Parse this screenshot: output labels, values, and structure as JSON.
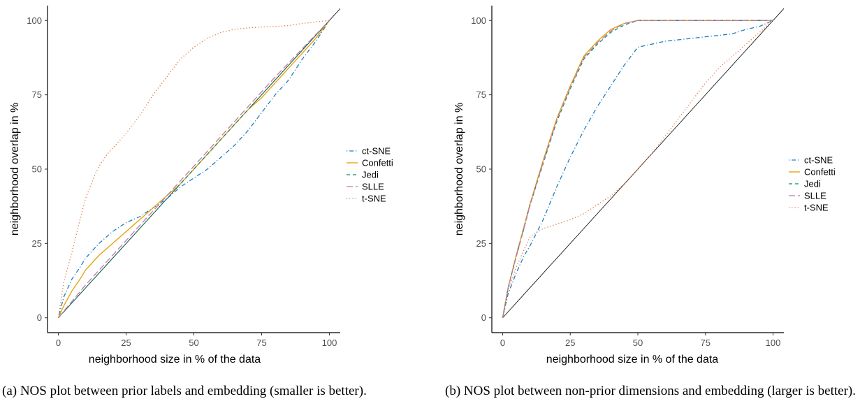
{
  "chart_data": [
    {
      "type": "line",
      "xlabel": "neighborhood size in % of the data",
      "ylabel": "neighborhood overlap in %",
      "xlim": [
        -4,
        104
      ],
      "ylim": [
        -5,
        105
      ],
      "x_ticks": [
        0,
        25,
        50,
        75,
        100
      ],
      "y_ticks": [
        0,
        25,
        50,
        75,
        100
      ],
      "grid": false,
      "legend_position": "right",
      "reference_line": {
        "x": [
          0,
          104
        ],
        "y": [
          0,
          104
        ]
      },
      "series": [
        {
          "name": "ct-SNE",
          "color": "#1f7fc0",
          "dash": "dot-dash",
          "x": [
            0,
            2,
            5,
            8,
            10,
            15,
            20,
            25,
            30,
            35,
            40,
            45,
            50,
            55,
            60,
            65,
            70,
            75,
            80,
            85,
            90,
            95,
            100
          ],
          "y": [
            0,
            7,
            13,
            17,
            20,
            25,
            29,
            32,
            34,
            37,
            40,
            44,
            47,
            50,
            54,
            58,
            63,
            69,
            75,
            80,
            87,
            93,
            100
          ]
        },
        {
          "name": "Confetti",
          "color": "#e69f00",
          "dash": "solid",
          "x": [
            0,
            2,
            5,
            8,
            10,
            15,
            20,
            25,
            30,
            35,
            40,
            45,
            50,
            55,
            60,
            65,
            70,
            75,
            80,
            85,
            90,
            95,
            100
          ],
          "y": [
            0,
            4,
            9,
            13,
            16,
            21,
            25,
            29,
            33,
            37,
            41,
            45,
            50,
            55,
            60,
            65,
            70,
            74,
            79,
            84,
            89,
            94,
            100
          ]
        },
        {
          "name": "Jedi",
          "color": "#0f8a6e",
          "dash": "dashed",
          "x": [
            0,
            10,
            20,
            30,
            40,
            50,
            60,
            70,
            80,
            90,
            100
          ],
          "y": [
            0,
            10,
            20,
            30,
            40,
            50,
            60,
            70,
            80,
            90,
            100
          ]
        },
        {
          "name": "SLLE",
          "color": "#c279a7",
          "dash": "long-dash",
          "x": [
            0,
            10,
            20,
            30,
            40,
            50,
            60,
            70,
            80,
            90,
            100
          ],
          "y": [
            0,
            11,
            21,
            31,
            41,
            51,
            61,
            71,
            81,
            90.5,
            100
          ]
        },
        {
          "name": "t-SNE",
          "color": "#e0733a",
          "dash": "dotted",
          "x": [
            0,
            2,
            5,
            8,
            10,
            13,
            15,
            18,
            20,
            25,
            30,
            35,
            40,
            45,
            50,
            55,
            60,
            65,
            70,
            75,
            80,
            85,
            90,
            95,
            100
          ],
          "y": [
            0,
            12,
            22,
            33,
            40,
            47,
            51,
            55,
            57,
            62,
            68,
            75,
            81,
            87,
            91,
            94,
            96,
            97,
            97.5,
            97.8,
            98,
            98.3,
            99,
            99.5,
            100
          ]
        }
      ],
      "caption": "(a) NOS plot between prior labels and embedding (smaller is better)."
    },
    {
      "type": "line",
      "xlabel": "neighborhood size in % of the data",
      "ylabel": "neighborhood overlap in %",
      "xlim": [
        -4,
        104
      ],
      "ylim": [
        -5,
        105
      ],
      "x_ticks": [
        0,
        25,
        50,
        75,
        100
      ],
      "y_ticks": [
        0,
        25,
        50,
        75,
        100
      ],
      "grid": false,
      "legend_position": "right",
      "reference_line": {
        "x": [
          0,
          104
        ],
        "y": [
          0,
          104
        ]
      },
      "series": [
        {
          "name": "ct-SNE",
          "color": "#1f7fc0",
          "dash": "dot-dash",
          "x": [
            0,
            2,
            5,
            8,
            10,
            15,
            20,
            25,
            30,
            35,
            40,
            45,
            50,
            55,
            60,
            65,
            70,
            75,
            80,
            85,
            90,
            95,
            100
          ],
          "y": [
            0,
            8,
            15,
            21,
            24,
            33,
            44,
            54,
            63,
            71,
            78,
            85,
            91,
            92,
            93,
            93.5,
            94,
            94.5,
            95,
            95.5,
            97,
            98,
            100
          ]
        },
        {
          "name": "Confetti",
          "color": "#e69f00",
          "dash": "solid",
          "x": [
            0,
            2,
            5,
            8,
            10,
            15,
            20,
            25,
            30,
            35,
            40,
            45,
            50,
            55,
            60,
            70,
            80,
            90,
            100
          ],
          "y": [
            0,
            10,
            21,
            31,
            38,
            53,
            67,
            78,
            88,
            93,
            97,
            99,
            100,
            100,
            100,
            100,
            100,
            100,
            100
          ]
        },
        {
          "name": "Jedi",
          "color": "#0f8a6e",
          "dash": "dashed",
          "x": [
            0,
            2,
            5,
            8,
            10,
            15,
            20,
            25,
            30,
            35,
            40,
            45,
            50,
            55,
            60,
            70,
            80,
            90,
            100
          ],
          "y": [
            0,
            10,
            20.5,
            30.5,
            37.5,
            52,
            66,
            77,
            87,
            92,
            96,
            98.5,
            100,
            100,
            100,
            100,
            100,
            100,
            100
          ]
        },
        {
          "name": "SLLE",
          "color": "#c279a7",
          "dash": "long-dash",
          "x": [
            0,
            2,
            5,
            8,
            10,
            15,
            20,
            25,
            30,
            35,
            40,
            45,
            50,
            55,
            60,
            70,
            80,
            90,
            100
          ],
          "y": [
            0,
            10,
            20.5,
            30.5,
            37.5,
            52.5,
            66.5,
            77.5,
            87.5,
            92.5,
            96.5,
            99,
            100,
            100,
            100,
            100,
            100,
            100,
            100
          ]
        },
        {
          "name": "t-SNE",
          "color": "#e0733a",
          "dash": "dotted",
          "x": [
            0,
            2,
            5,
            8,
            10,
            12,
            15,
            20,
            25,
            30,
            35,
            40,
            45,
            50,
            55,
            60,
            65,
            70,
            75,
            80,
            85,
            90,
            95,
            100
          ],
          "y": [
            0,
            9,
            17,
            23,
            27,
            28.5,
            30,
            31.5,
            33,
            35,
            38,
            41,
            45,
            50,
            55,
            61,
            67,
            73,
            79,
            84,
            88,
            92,
            96,
            100
          ]
        }
      ],
      "caption": "(b) NOS plot between non-prior dimensions and embedding (larger is better)."
    }
  ]
}
